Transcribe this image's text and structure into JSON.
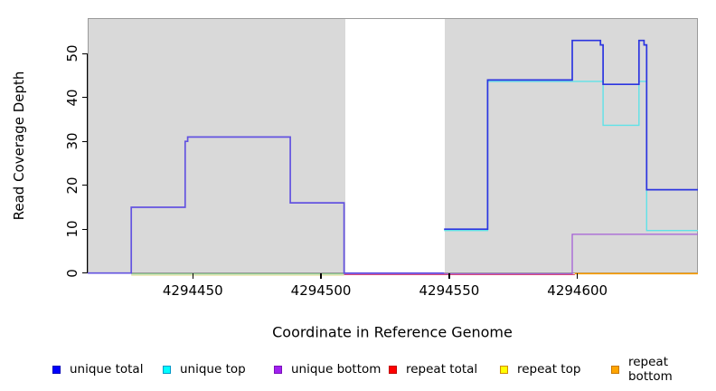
{
  "figure": {
    "x_axis": {
      "title": "Coordinate in Reference Genome",
      "tick_labels": [
        "4294450",
        "4294500",
        "4294550",
        "4294600"
      ],
      "tick_values": [
        4294450,
        4294500,
        4294550,
        4294600
      ]
    },
    "y_axis": {
      "title": "Read Coverage Depth",
      "tick_labels": [
        "0",
        "10",
        "20",
        "30",
        "40",
        "50"
      ],
      "tick_values": [
        0,
        10,
        20,
        30,
        40,
        50
      ]
    },
    "legend": [
      {
        "label": "unique total",
        "color": "#0000ff",
        "border": "#0000b8"
      },
      {
        "label": "unique top",
        "color": "#00ffff",
        "border": "#0098c8"
      },
      {
        "label": "unique bottom",
        "color": "#a020f0",
        "border": "#7a10b8"
      },
      {
        "label": "repeat total",
        "color": "#ff0000",
        "border": "#c00000"
      },
      {
        "label": "repeat top",
        "color": "#ffff00",
        "border": "#d08a00"
      },
      {
        "label": "repeat bottom",
        "color": "#ffa500",
        "border": "#c87800"
      }
    ],
    "chart_data": {
      "type": "line",
      "step": "after",
      "title": "",
      "xlabel": "Coordinate in Reference Genome",
      "ylabel": "Read Coverage Depth",
      "xlim": [
        4294409,
        4294647
      ],
      "ylim": [
        0,
        58
      ],
      "grid": false,
      "plot_background_color": "#d9d9d9",
      "uncovered_white_gap_x": [
        4294509,
        4294548
      ],
      "series": [
        {
          "name": "unique total",
          "color": "#0000ff",
          "points": [
            [
              4294409,
              0
            ],
            [
              4294426,
              15
            ],
            [
              4294447,
              30
            ],
            [
              4294448,
              31
            ],
            [
              4294488,
              16
            ],
            [
              4294509,
              0
            ],
            [
              4294548,
              10
            ],
            [
              4294565,
              44
            ],
            [
              4294598,
              53
            ],
            [
              4294609,
              52
            ],
            [
              4294610,
              43
            ],
            [
              4294624,
              53
            ],
            [
              4294626,
              52
            ],
            [
              4294627,
              19
            ],
            [
              4294647,
              19
            ]
          ]
        },
        {
          "name": "unique top",
          "color": "#00ffff",
          "points": [
            [
              4294426,
              0
            ],
            [
              4294509,
              0
            ],
            [
              4294548,
              10
            ],
            [
              4294565,
              44
            ],
            [
              4294610,
              34
            ],
            [
              4294624,
              44
            ],
            [
              4294627,
              10
            ],
            [
              4294647,
              10
            ]
          ]
        },
        {
          "name": "unique bottom",
          "color": "#a020f0",
          "points": [
            [
              4294409,
              0
            ],
            [
              4294426,
              15
            ],
            [
              4294447,
              30
            ],
            [
              4294448,
              31
            ],
            [
              4294488,
              16
            ],
            [
              4294509,
              0
            ],
            [
              4294598,
              9
            ],
            [
              4294647,
              9
            ]
          ]
        },
        {
          "name": "repeat total",
          "color": "#ff0000",
          "points": [
            [
              4294509,
              0
            ],
            [
              4294647,
              0
            ]
          ]
        },
        {
          "name": "repeat top",
          "color": "#ffff00",
          "points": [
            [
              4294426,
              0
            ],
            [
              4294509,
              0
            ]
          ]
        },
        {
          "name": "repeat bottom",
          "color": "#ffa500",
          "points": [
            [
              4294599,
              0
            ],
            [
              4294647,
              0
            ]
          ]
        }
      ],
      "render": [
        {
          "name": "zero-line-unique-top-repeat-top-blend",
          "color": "#8fcc8f",
          "width": 1.2,
          "dy": 0.9,
          "points": [
            [
              4294426,
              0
            ],
            [
              4294509,
              0
            ]
          ]
        },
        {
          "name": "zero-line-repeat-top",
          "color": "#eae4a8",
          "width": 1.2,
          "dy": 2.4,
          "points": [
            [
              4294426,
              0
            ],
            [
              4294509,
              0
            ]
          ]
        },
        {
          "name": "zero-line-repeat-total",
          "color": "#e04868",
          "width": 1.2,
          "dy": 1.7,
          "points": [
            [
              4294509,
              0
            ],
            [
              4294599,
              0
            ]
          ]
        },
        {
          "name": "zero-line-repeat-bottom",
          "color": "#ff9d00",
          "width": 1.7,
          "dy": 0.6,
          "points": [
            [
              4294599,
              0
            ],
            [
              4294647,
              0
            ]
          ]
        },
        {
          "name": "unique-bottom-line",
          "color": "#a55fd6",
          "width": 1.3,
          "dy": 0.8,
          "points": [
            [
              4294509,
              0
            ],
            [
              4294598,
              9
            ],
            [
              4294647,
              9
            ]
          ]
        },
        {
          "name": "unique-top-line",
          "color": "#5fe2e8",
          "width": 1.4,
          "dy": 1.5,
          "points": [
            [
              4294548,
              10
            ],
            [
              4294565,
              44
            ],
            [
              4294610,
              34
            ],
            [
              4294624,
              44
            ],
            [
              4294627,
              10
            ],
            [
              4294647,
              10
            ]
          ]
        },
        {
          "name": "unique-total-left-overlap-bottom",
          "color": "#6353e0",
          "width": 1.7,
          "dy": 0,
          "points": [
            [
              4294409,
              0
            ],
            [
              4294426,
              15
            ],
            [
              4294447,
              30
            ],
            [
              4294448,
              31
            ],
            [
              4294488,
              16
            ],
            [
              4294509,
              0
            ],
            [
              4294548,
              0
            ]
          ]
        },
        {
          "name": "unique-total-right",
          "color": "#2c35e0",
          "width": 1.7,
          "dy": 0,
          "points": [
            [
              4294548,
              10
            ],
            [
              4294565,
              44
            ],
            [
              4294598,
              53
            ],
            [
              4294609,
              52
            ],
            [
              4294610,
              43
            ],
            [
              4294624,
              53
            ],
            [
              4294626,
              52
            ],
            [
              4294627,
              19
            ],
            [
              4294647,
              19
            ]
          ]
        }
      ]
    }
  }
}
